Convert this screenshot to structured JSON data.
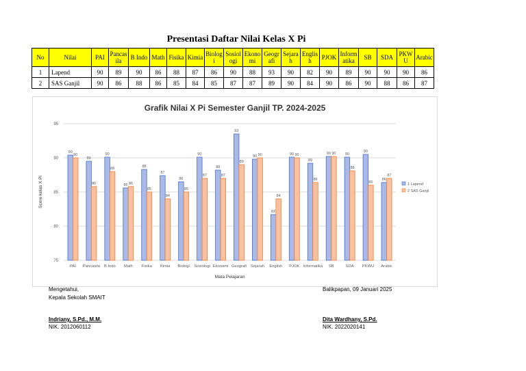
{
  "page_title": "Presentasi Daftar Nilai Kelas X Pi",
  "table": {
    "headers": [
      "No",
      "Nilai",
      "PAI",
      "Pancas ila",
      "B Indo",
      "Math",
      "Fisika",
      "Kimia",
      "Biolog i",
      "Sosiol ogi",
      "Ekono mi",
      "Geogr afi",
      "Sejara h",
      "Englis h",
      "PJOK",
      "Inform atika",
      "SB",
      "SDA",
      "PKW U",
      "Arabic"
    ],
    "rows": [
      [
        "1",
        "Lapend",
        "90",
        "89",
        "90",
        "86",
        "88",
        "87",
        "86",
        "90",
        "88",
        "93",
        "90",
        "82",
        "90",
        "89",
        "90",
        "90",
        "90",
        "86"
      ],
      [
        "2",
        "SAS Ganjil",
        "90",
        "86",
        "88",
        "86",
        "85",
        "84",
        "85",
        "87",
        "87",
        "89",
        "90",
        "84",
        "90",
        "86",
        "90",
        "88",
        "86",
        "87"
      ]
    ]
  },
  "chart_data": {
    "type": "bar",
    "title": "Grafik Nilai X Pi Semester Ganjil TP. 2024-2025",
    "xlabel": "Mata Pelajaran",
    "ylabel": "Score kelas X Pi",
    "ylim": [
      75,
      95
    ],
    "yticks": [
      75,
      80,
      85,
      90,
      95
    ],
    "categories": [
      "PAI",
      "Pancasila",
      "B Indo",
      "Math",
      "Fisika",
      "Kimia",
      "Biologi",
      "Sosiologi",
      "Ekonomi",
      "Geografi",
      "Sejarah",
      "English",
      "PJOK",
      "Informatika",
      "SB",
      "SDA",
      "PKWU",
      "Arabic"
    ],
    "series": [
      {
        "name": "1 Lapend",
        "color": "#aab9e8",
        "stroke": "#4472c4",
        "values": [
          90.4,
          89.5,
          90.1,
          85.6,
          88.3,
          87.4,
          86.5,
          90.1,
          88.2,
          93.5,
          89.8,
          81.7,
          90.1,
          89.2,
          90.2,
          90.1,
          90.5,
          86.4
        ]
      },
      {
        "name": "2 SAS Ganjil",
        "color": "#f8c2a2",
        "stroke": "#ed7d31",
        "values": [
          90.0,
          85.8,
          88.0,
          85.8,
          85.0,
          84.0,
          85.0,
          87.0,
          87.0,
          89.0,
          90.0,
          84.0,
          90.0,
          86.4,
          90.2,
          88.1,
          86.0,
          87.0
        ]
      }
    ],
    "data_labels": [
      [
        "90",
        "89",
        "90",
        "86",
        "88",
        "87",
        "86",
        "90",
        "88",
        "93",
        "90",
        "82",
        "90",
        "89",
        "90",
        "90",
        "90",
        "86"
      ],
      [
        "90",
        "86",
        "88",
        "86",
        "85",
        "84",
        "85",
        "87",
        "87",
        "89",
        "90",
        "84",
        "90",
        "86",
        "90",
        "88",
        "86",
        "87"
      ]
    ],
    "grid": true,
    "legend": "right"
  },
  "footer": {
    "acknowledged": "Mengetahui,",
    "principal_title": "Kepala Sekolah SMAIT",
    "place_date": "Balikpapan, 09 Januari 2025",
    "principal_name": "Indriany, S.Pd., M.M.",
    "principal_nik": "NIK. 2012060112",
    "teacher_name": "Dita Wardhany, S.Pd.",
    "teacher_nik": "NIK. 2022020141"
  }
}
